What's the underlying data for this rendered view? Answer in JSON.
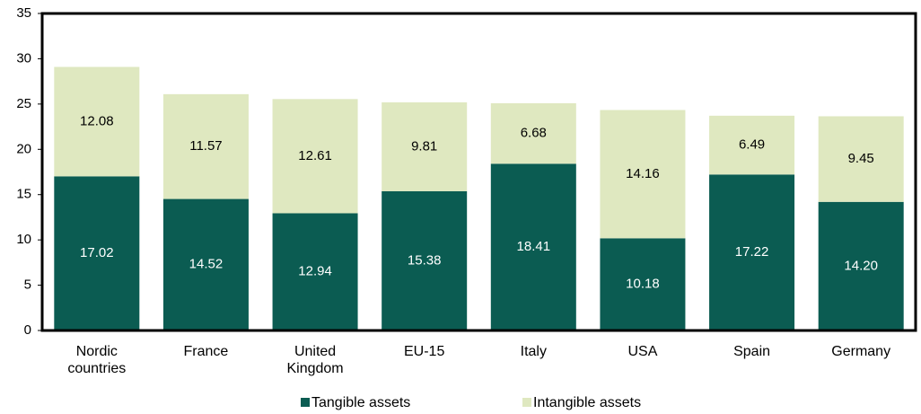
{
  "chart_data": {
    "type": "stacked-bar",
    "categories": [
      "Nordic countries",
      "France",
      "United Kingdom",
      "EU-15",
      "Italy",
      "USA",
      "Spain",
      "Germany"
    ],
    "series": [
      {
        "name": "Tangible assets",
        "color": "#0b5c52",
        "values": [
          17.02,
          14.52,
          12.94,
          15.38,
          18.41,
          10.18,
          17.22,
          14.2
        ],
        "value_labels": [
          "17.02",
          "14.52",
          "12.94",
          "15.38",
          "18.41",
          "10.18",
          "17.22",
          "14.20"
        ]
      },
      {
        "name": "Intangible assets",
        "color": "#dfe8c0",
        "values": [
          12.08,
          11.57,
          12.61,
          9.81,
          6.68,
          14.16,
          6.49,
          9.45
        ],
        "value_labels": [
          "12.08",
          "11.57",
          "12.61",
          "9.81",
          "6.68",
          "14.16",
          "6.49",
          "9.45"
        ]
      }
    ],
    "ylim": [
      0,
      35
    ],
    "yticks": [
      0,
      5,
      10,
      15,
      20,
      25,
      30,
      35
    ],
    "legend": "bottom"
  }
}
